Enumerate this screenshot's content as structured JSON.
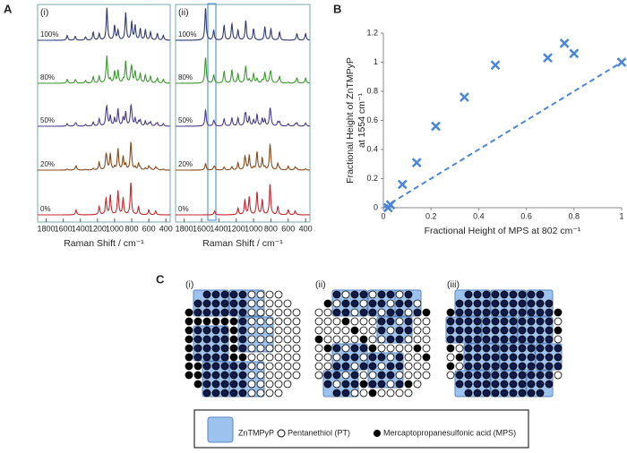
{
  "panel_a": {
    "label": "A",
    "xlabel": "Raman Shift / cm⁻¹",
    "xlim": [
      1900,
      350
    ],
    "xticks": [
      1800,
      1600,
      1400,
      1200,
      1000,
      800,
      600,
      400
    ],
    "traces": [
      {
        "label": "100%",
        "value": 100,
        "color": "#2e3a78"
      },
      {
        "label": "80%",
        "value": 80,
        "color": "#3a9a2e"
      },
      {
        "label": "50%",
        "value": 50,
        "color": "#4a3c8c"
      },
      {
        "label": "20%",
        "value": 20,
        "color": "#8a4a1a"
      },
      {
        "label": "0%",
        "value": 0,
        "color": "#c8282e"
      }
    ],
    "subpanels": [
      {
        "label": "(i)",
        "znt_peaks": [
          [
            1554,
            0.15
          ],
          [
            1460,
            0.12
          ],
          [
            1340,
            0.1
          ],
          [
            1250,
            0.25
          ],
          [
            1180,
            0.2
          ],
          [
            1090,
            1.0
          ],
          [
            1000,
            0.45
          ],
          [
            960,
            0.3
          ],
          [
            870,
            0.85
          ],
          [
            800,
            0.55
          ],
          [
            760,
            0.45
          ],
          [
            700,
            0.35
          ],
          [
            640,
            0.3
          ],
          [
            580,
            0.25
          ],
          [
            500,
            0.2
          ],
          [
            430,
            0.15
          ]
        ],
        "mps_peaks": [
          [
            1450,
            0.15
          ],
          [
            1180,
            0.25
          ],
          [
            1100,
            0.5
          ],
          [
            1050,
            0.6
          ],
          [
            960,
            0.75
          ],
          [
            900,
            0.5
          ],
          [
            810,
            1.0
          ],
          [
            720,
            0.25
          ],
          [
            600,
            0.15
          ],
          [
            520,
            0.12
          ]
        ]
      },
      {
        "label": "(ii)",
        "znt_peaks": [
          [
            1554,
            1.0
          ],
          [
            1460,
            0.3
          ],
          [
            1340,
            0.45
          ],
          [
            1250,
            0.5
          ],
          [
            1180,
            0.3
          ],
          [
            1090,
            0.6
          ],
          [
            1000,
            0.35
          ],
          [
            870,
            0.4
          ],
          [
            800,
            0.35
          ],
          [
            700,
            0.25
          ],
          [
            500,
            0.2
          ],
          [
            400,
            0.2
          ]
        ],
        "mps_peaks": [
          [
            1450,
            0.12
          ],
          [
            1180,
            0.2
          ],
          [
            1100,
            0.45
          ],
          [
            1050,
            0.55
          ],
          [
            960,
            0.7
          ],
          [
            900,
            0.45
          ],
          [
            810,
            0.95
          ],
          [
            720,
            0.25
          ],
          [
            600,
            0.15
          ],
          [
            520,
            0.12
          ]
        ]
      }
    ]
  },
  "chart_data": {
    "type": "scatter",
    "label": "B",
    "xlabel": "Fractional Height of MPS at 802 cm⁻¹",
    "ylabel": [
      "Fractional Height of ZnTMPyP",
      "at 1554 cm⁻¹"
    ],
    "x": [
      0.02,
      0.03,
      0.08,
      0.14,
      0.22,
      0.34,
      0.47,
      0.69,
      0.76,
      0.8,
      1.0
    ],
    "values": [
      0.0,
      0.02,
      0.16,
      0.31,
      0.56,
      0.76,
      0.98,
      1.03,
      1.13,
      1.06,
      1.0
    ],
    "color": "#4a86d8",
    "trend": {
      "x": [
        0,
        1
      ],
      "values": [
        0,
        1
      ]
    },
    "xlim": [
      0,
      1
    ],
    "ylim": [
      0,
      1.2
    ],
    "xticks": [
      0,
      0.2,
      0.4,
      0.6,
      0.8,
      1
    ],
    "yticks": [
      0,
      0.2,
      0.4,
      0.6,
      0.8,
      1,
      1.2
    ]
  },
  "panel_c": {
    "label": "C",
    "subpanels": [
      "(i)",
      "(ii)",
      "(iii)"
    ],
    "legend": [
      "ZnTMPyP",
      "Pentanethiol (PT)",
      "Mercaptopropanesulfonic acid (MPS)"
    ]
  }
}
